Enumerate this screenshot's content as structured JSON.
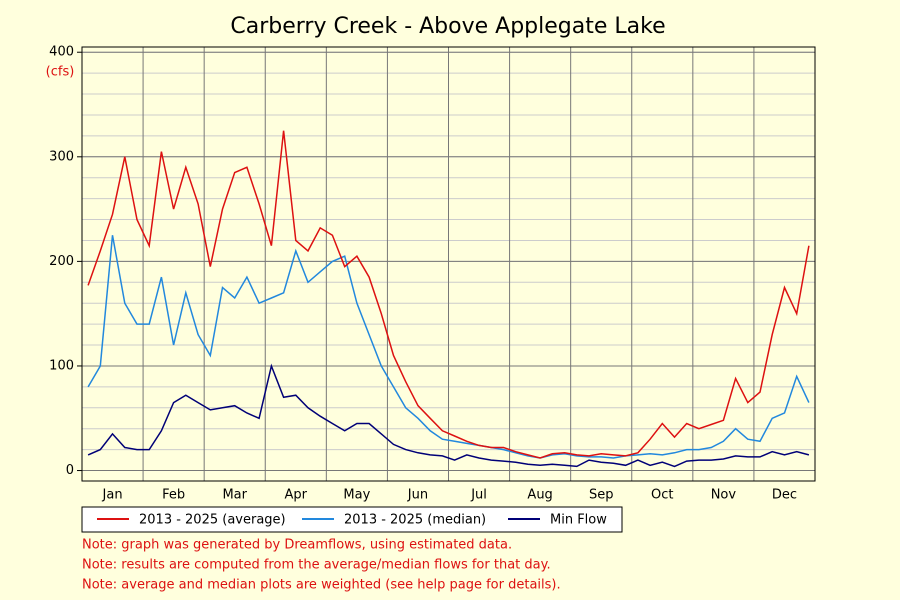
{
  "chart_data": {
    "type": "line",
    "title": "Carberry Creek - Above Applegate Lake",
    "y_label": "(cfs)",
    "categories": [
      null,
      null,
      "Jan",
      null,
      null,
      null,
      null,
      "Feb",
      null,
      null,
      null,
      null,
      "Mar",
      null,
      null,
      null,
      null,
      "Apr",
      null,
      null,
      null,
      null,
      "May",
      null,
      null,
      null,
      null,
      "Jun",
      null,
      null,
      null,
      null,
      "Jul",
      null,
      null,
      null,
      null,
      "Aug",
      null,
      null,
      null,
      null,
      "Sep",
      null,
      null,
      null,
      null,
      "Oct",
      null,
      null,
      null,
      null,
      "Nov",
      null,
      null,
      null,
      null,
      "Dec",
      null,
      null
    ],
    "series": [
      {
        "name": "2013 - 2025 (average)",
        "color": "#dd1111",
        "values": [
          177,
          210,
          245,
          300,
          240,
          215,
          305,
          250,
          290,
          255,
          195,
          250,
          285,
          290,
          255,
          215,
          325,
          220,
          210,
          232,
          225,
          195,
          205,
          185,
          150,
          110,
          85,
          62,
          50,
          38,
          33,
          28,
          24,
          22,
          22,
          18,
          15,
          12,
          16,
          17,
          15,
          14,
          16,
          15,
          14,
          17,
          30,
          45,
          32,
          45,
          40,
          44,
          48,
          88,
          65,
          75,
          130,
          175,
          150,
          215
        ]
      },
      {
        "name": "2013 - 2025 (median)",
        "color": "#2288dd",
        "values": [
          80,
          100,
          225,
          160,
          140,
          140,
          185,
          120,
          170,
          130,
          110,
          175,
          165,
          185,
          160,
          165,
          170,
          210,
          180,
          190,
          200,
          205,
          160,
          130,
          100,
          80,
          60,
          50,
          38,
          30,
          28,
          26,
          24,
          22,
          20,
          17,
          14,
          12,
          15,
          16,
          14,
          13,
          13,
          12,
          14,
          15,
          16,
          15,
          17,
          20,
          20,
          22,
          28,
          40,
          30,
          28,
          50,
          55,
          90,
          65
        ]
      },
      {
        "name": "Min Flow",
        "color": "#000077",
        "values": [
          15,
          20,
          35,
          22,
          20,
          20,
          38,
          65,
          72,
          65,
          58,
          60,
          62,
          55,
          50,
          100,
          70,
          72,
          60,
          52,
          45,
          38,
          45,
          45,
          35,
          25,
          20,
          17,
          15,
          14,
          10,
          15,
          12,
          10,
          9,
          8,
          6,
          5,
          6,
          5,
          4,
          10,
          8,
          7,
          5,
          10,
          5,
          8,
          4,
          9,
          10,
          10,
          11,
          14,
          13,
          13,
          18,
          15,
          18,
          15
        ]
      }
    ],
    "ylim": [
      -10,
      405
    ],
    "yticks": [
      0,
      100,
      200,
      300,
      400
    ],
    "grid": true,
    "legend": "bottom",
    "notes": [
      "Note: graph was generated by Dreamflows, using estimated data.",
      "Note: results are computed from the average/median flows for that day.",
      "Note: average and median plots are weighted (see help page for details)."
    ]
  }
}
